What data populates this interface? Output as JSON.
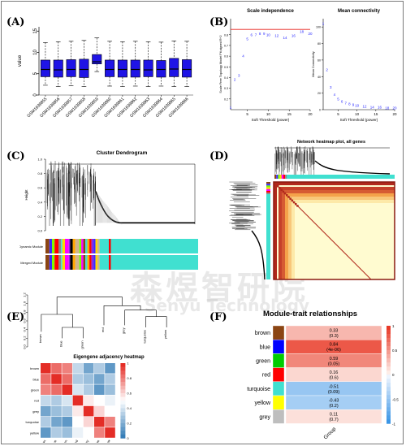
{
  "panel_labels": [
    "(A)",
    "(B)",
    "(C)",
    "(D)",
    "(E)",
    "(F)"
  ],
  "watermark": {
    "cn": "森煜智研院",
    "en": "Senyu Technology"
  },
  "chart_data": [
    {
      "id": "A",
      "type": "box",
      "title": "",
      "ylabel": "value",
      "xlabel": "",
      "ylim": [
        0,
        16
      ],
      "yticks": [
        0,
        5,
        10,
        15
      ],
      "color": "#1f14e6",
      "categories": [
        "GSM1639855",
        "GSM1639856",
        "GSM1639857",
        "GSM1639858",
        "GSM1639859",
        "GSM1639860",
        "GSM1639861",
        "GSM1639862",
        "GSM1639863",
        "GSM1639864",
        "GSM1639865",
        "GSM1639866"
      ],
      "boxes": [
        {
          "min": 2.3,
          "q1": 4.3,
          "median": 6.0,
          "q3": 8.2,
          "max": 12.3
        },
        {
          "min": 2.0,
          "q1": 4.2,
          "median": 5.9,
          "q3": 8.2,
          "max": 12.5
        },
        {
          "min": 2.2,
          "q1": 4.3,
          "median": 6.0,
          "q3": 8.3,
          "max": 12.6
        },
        {
          "min": 2.0,
          "q1": 4.1,
          "median": 6.0,
          "q3": 8.4,
          "max": 12.8
        },
        {
          "min": 5.5,
          "q1": 7.3,
          "median": 7.8,
          "q3": 9.5,
          "max": 13.4
        },
        {
          "min": 2.1,
          "q1": 4.3,
          "median": 6.0,
          "q3": 8.2,
          "max": 12.6
        },
        {
          "min": 2.0,
          "q1": 4.2,
          "median": 6.0,
          "q3": 8.2,
          "max": 12.5
        },
        {
          "min": 2.1,
          "q1": 4.2,
          "median": 6.0,
          "q3": 8.2,
          "max": 12.6
        },
        {
          "min": 2.0,
          "q1": 4.3,
          "median": 5.9,
          "q3": 8.2,
          "max": 12.5
        },
        {
          "min": 2.1,
          "q1": 4.2,
          "median": 6.0,
          "q3": 8.1,
          "max": 12.4
        },
        {
          "min": 2.0,
          "q1": 4.3,
          "median": 6.1,
          "q3": 8.6,
          "max": 12.7
        },
        {
          "min": 2.0,
          "q1": 4.2,
          "median": 6.0,
          "q3": 8.3,
          "max": 12.6
        }
      ]
    },
    {
      "id": "B1",
      "type": "scatter",
      "title": "Scale independence",
      "xlabel": "Soft Threshold (power)",
      "ylabel": "Scale Free Topology Model Fit,signed R^2",
      "xlim": [
        1,
        20
      ],
      "ylim": [
        0.1,
        0.95
      ],
      "xticks": [
        5,
        10,
        15,
        20
      ],
      "yticks": [
        0.2,
        0.3,
        0.4,
        0.5,
        0.6,
        0.7,
        0.8
      ],
      "hline": 0.85,
      "hline_color": "#e8211a",
      "point_color": "#2a2aff",
      "points": [
        [
          1,
          0.12
        ],
        [
          2,
          0.38
        ],
        [
          3,
          0.42
        ],
        [
          4,
          0.6
        ],
        [
          5,
          0.76
        ],
        [
          6,
          0.8
        ],
        [
          7,
          0.8
        ],
        [
          8,
          0.81
        ],
        [
          9,
          0.81
        ],
        [
          10,
          0.8
        ],
        [
          12,
          0.79
        ],
        [
          14,
          0.77
        ],
        [
          16,
          0.79
        ],
        [
          18,
          0.83
        ],
        [
          20,
          0.81
        ]
      ]
    },
    {
      "id": "B2",
      "type": "scatter",
      "title": "Mean connectivity",
      "xlabel": "Soft Threshold (power)",
      "ylabel": "Mean Connectivity",
      "xlim": [
        1,
        20
      ],
      "ylim": [
        0,
        110
      ],
      "xticks": [
        5,
        10,
        15,
        20
      ],
      "yticks": [
        0,
        20,
        40,
        60,
        80,
        100
      ],
      "point_color": "#2a2aff",
      "points": [
        [
          1,
          104
        ],
        [
          2,
          48
        ],
        [
          3,
          27
        ],
        [
          4,
          18
        ],
        [
          5,
          13
        ],
        [
          6,
          10
        ],
        [
          7,
          8
        ],
        [
          8,
          7
        ],
        [
          9,
          6
        ],
        [
          10,
          5
        ],
        [
          12,
          4
        ],
        [
          14,
          3
        ],
        [
          16,
          3
        ],
        [
          18,
          2
        ],
        [
          20,
          2
        ]
      ]
    },
    {
      "id": "C",
      "type": "dendrogram",
      "title": "Cluster Dendrogram",
      "ylabel": "Height",
      "ylim": [
        0.0,
        1.0
      ],
      "yticks": [
        0.0,
        0.2,
        0.4,
        0.6,
        0.8,
        1.0
      ],
      "row_labels": [
        "Dynamic Module",
        "Merged Module"
      ],
      "module_colors": [
        "#8b4513",
        "#3b2cff",
        "#7cfc00",
        "#ff0000",
        "#888888",
        "#40e0d0",
        "#ffd700",
        "#ff00ff",
        "#8a2be2",
        "#000000",
        "#ffa500",
        "#d2b48c"
      ]
    },
    {
      "id": "D",
      "type": "heatmap",
      "title": "Network heatmap plot, all genes",
      "colors": {
        "low": "#fffbd0",
        "mid": "#f4a24a",
        "high": "#b0281c"
      }
    },
    {
      "id": "E",
      "type": "heatmap",
      "title": "Eigengene adjacency heatmap",
      "categories": [
        "brown",
        "blue",
        "green",
        "red",
        "grey",
        "turquoise",
        "yellow"
      ],
      "legend_ticks": [
        0,
        0.2,
        0.4,
        0.6,
        0.8,
        1
      ],
      "values": [
        [
          1.0,
          0.85,
          0.8,
          0.35,
          0.15,
          0.3,
          0.1
        ],
        [
          0.85,
          1.0,
          0.85,
          0.3,
          0.25,
          0.15,
          0.3
        ],
        [
          0.8,
          0.85,
          1.0,
          0.4,
          0.3,
          0.1,
          0.25
        ],
        [
          0.35,
          0.3,
          0.4,
          1.0,
          0.55,
          0.5,
          0.45
        ],
        [
          0.15,
          0.25,
          0.3,
          0.55,
          1.0,
          0.6,
          0.5
        ],
        [
          0.3,
          0.15,
          0.1,
          0.5,
          0.6,
          1.0,
          0.8
        ],
        [
          0.1,
          0.3,
          0.25,
          0.45,
          0.5,
          0.8,
          1.0
        ]
      ],
      "dendrogram_ticks": [
        0.0,
        0.2,
        0.4,
        0.6,
        0.8,
        1.0,
        1.2
      ]
    },
    {
      "id": "F",
      "type": "heatmap",
      "title": "Module-trait relationships",
      "xlabel": "Group",
      "modules": [
        "brown",
        "blue",
        "green",
        "red",
        "turquoise",
        "yellow",
        "grey"
      ],
      "module_colors": [
        "#8b4513",
        "#0000ff",
        "#00cc00",
        "#ff0000",
        "#40e0d0",
        "#ffff00",
        "#bebebe"
      ],
      "cells": [
        {
          "r": 0.33,
          "line1": "0.33",
          "line2": "(0.3)"
        },
        {
          "r": 0.84,
          "line1": "0.84",
          "line2": "(4e-06)"
        },
        {
          "r": 0.59,
          "line1": "0.59",
          "line2": "(0.05)"
        },
        {
          "r": 0.16,
          "line1": "0.16",
          "line2": "(0.6)"
        },
        {
          "r": -0.51,
          "line1": "-0.51",
          "line2": "(0.09)"
        },
        {
          "r": -0.43,
          "line1": "-0.43",
          "line2": "(0.2)"
        },
        {
          "r": 0.11,
          "line1": "0.11",
          "line2": "(0.7)"
        }
      ],
      "legend_ticks": [
        "1",
        "0.5",
        "0",
        "-0.5",
        "-1"
      ]
    }
  ]
}
